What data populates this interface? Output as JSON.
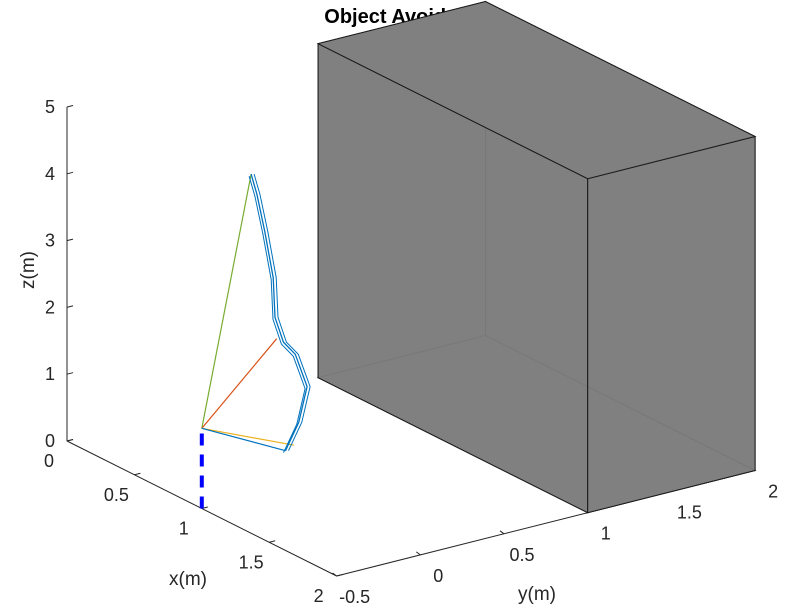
{
  "chart_data": {
    "type": "line3d",
    "title": "Object Avoidence",
    "xlabel": "x(m)",
    "ylabel": "y(m)",
    "zlabel": "z(m)",
    "x_ticks": [
      "0",
      "0.5",
      "1",
      "1.5",
      "2"
    ],
    "y_ticks": [
      "-0.5",
      "0",
      "0.5",
      "1",
      "1.5",
      "2"
    ],
    "z_ticks": [
      "0",
      "1",
      "2",
      "3",
      "4",
      "5"
    ],
    "xlim": [
      0,
      2
    ],
    "ylim": [
      -0.5,
      2
    ],
    "zlim": [
      0,
      5
    ],
    "grid": false,
    "obstacle": {
      "x": [
        0,
        2
      ],
      "y": [
        1,
        2
      ],
      "z": [
        0,
        5
      ],
      "face_color": "#808080"
    },
    "base_post": {
      "x": 1,
      "y": -0.5,
      "z": [
        0,
        1.2
      ],
      "color": "#0000ff"
    },
    "links": [
      {
        "from": [
          1,
          -0.5,
          1.2
        ],
        "to": [
          0.0,
          0.6,
          3.3
        ],
        "color": "#77ac30"
      },
      {
        "from": [
          1,
          -0.5,
          1.2
        ],
        "to": [
          0.5,
          0.35,
          1.5
        ],
        "color": "#d95319"
      },
      {
        "from": [
          1,
          -0.5,
          1.2
        ],
        "to": [
          1.0,
          0.05,
          0.6
        ],
        "color": "#edb120"
      },
      {
        "from": [
          1,
          -0.5,
          1.2
        ],
        "to": [
          1.0,
          0.0,
          0.55
        ],
        "color": "#0072bd"
      }
    ],
    "end_path": {
      "color": "#0072bd",
      "points": [
        [
          1.0,
          0.0,
          0.55
        ],
        [
          0.95,
          0.12,
          0.85
        ],
        [
          0.85,
          0.25,
          1.2
        ],
        [
          0.7,
          0.3,
          1.5
        ],
        [
          0.55,
          0.35,
          1.5
        ],
        [
          0.45,
          0.38,
          1.75
        ],
        [
          0.35,
          0.45,
          2.2
        ],
        [
          0.2,
          0.52,
          2.7
        ],
        [
          0.08,
          0.57,
          3.1
        ],
        [
          0.0,
          0.6,
          3.3
        ]
      ]
    }
  }
}
